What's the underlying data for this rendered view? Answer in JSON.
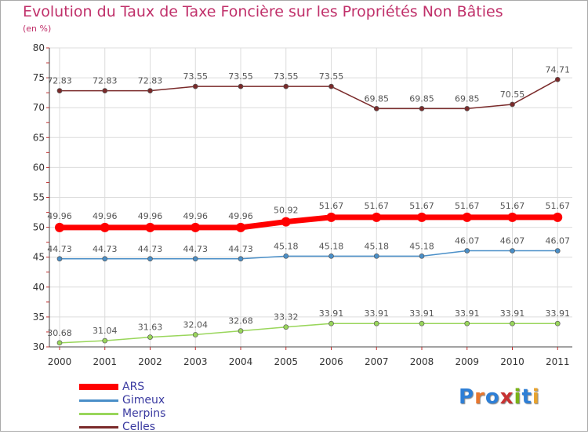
{
  "title": "Evolution du Taux de Taxe Foncière sur les Propriétés Non Bâties",
  "unit": "(en %)",
  "logo": {
    "text": "Proxiti",
    "colors": [
      "#2e7fd6",
      "#e8772e",
      "#2e7fd6",
      "#c83232",
      "#7ab317",
      "#2e7fd6",
      "#e8a32e"
    ]
  },
  "chart_data": {
    "type": "line",
    "categories": [
      "2000",
      "2001",
      "2002",
      "2003",
      "2004",
      "2005",
      "2006",
      "2007",
      "2008",
      "2009",
      "2010",
      "2011"
    ],
    "ylim": [
      30,
      80
    ],
    "yticks": [
      "30",
      "35",
      "40",
      "45",
      "50",
      "55",
      "60",
      "65",
      "70",
      "75",
      "80"
    ],
    "grid": true,
    "legend_position": "bottom-left",
    "series": [
      {
        "name": "ARS",
        "color": "#ff0000",
        "values": [
          49.96,
          49.96,
          49.96,
          49.96,
          49.96,
          50.92,
          51.67,
          51.67,
          51.67,
          51.67,
          51.67,
          51.67
        ],
        "labels": [
          "49.96",
          "49.96",
          "49.96",
          "49.96",
          "49.96",
          "50.92",
          "51.67",
          "51.67",
          "51.67",
          "51.67",
          "51.67",
          "51.67"
        ]
      },
      {
        "name": "Gimeux",
        "color": "#4a8fc8",
        "values": [
          44.73,
          44.73,
          44.73,
          44.73,
          44.73,
          45.18,
          45.18,
          45.18,
          45.18,
          46.07,
          46.07,
          46.07
        ],
        "labels": [
          "44.73",
          "44.73",
          "44.73",
          "44.73",
          "44.73",
          "45.18",
          "45.18",
          "45.18",
          "45.18",
          "46.07",
          "46.07",
          "46.07"
        ]
      },
      {
        "name": "Merpins",
        "color": "#99d65b",
        "values": [
          30.68,
          31.04,
          31.63,
          32.04,
          32.68,
          33.32,
          33.91,
          33.91,
          33.91,
          33.91,
          33.91,
          33.91
        ],
        "labels": [
          "30.68",
          "31.04",
          "31.63",
          "32.04",
          "32.68",
          "33.32",
          "33.91",
          "33.91",
          "33.91",
          "33.91",
          "33.91",
          "33.91"
        ]
      },
      {
        "name": "Celles",
        "color": "#7a2a2a",
        "values": [
          72.83,
          72.83,
          72.83,
          73.55,
          73.55,
          73.55,
          73.55,
          69.85,
          69.85,
          69.85,
          70.55,
          74.71
        ],
        "labels": [
          "72.83",
          "72.83",
          "72.83",
          "73.55",
          "73.55",
          "73.55",
          "73.55",
          "69.85",
          "69.85",
          "69.85",
          "70.55",
          "74.71"
        ]
      }
    ]
  }
}
